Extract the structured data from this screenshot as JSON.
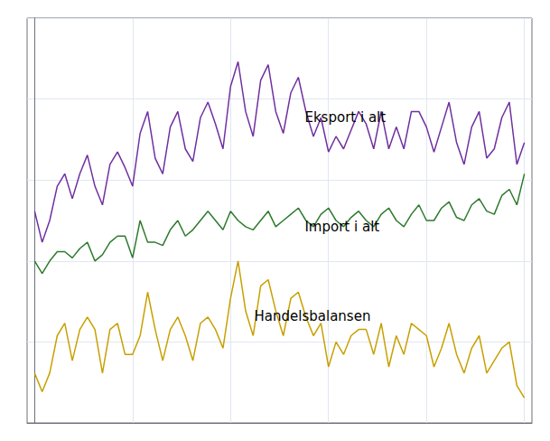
{
  "chart_data": {
    "type": "line",
    "x": [
      0,
      1,
      2,
      3,
      4,
      5,
      6,
      7,
      8,
      9,
      10,
      11,
      12,
      13,
      14,
      15,
      16,
      17,
      18,
      19,
      20,
      21,
      22,
      23,
      24,
      25,
      26,
      27,
      28,
      29,
      30,
      31,
      32,
      33,
      34,
      35,
      36,
      37,
      38,
      39,
      40,
      41,
      42,
      43,
      44,
      45,
      46,
      47,
      48,
      49,
      50,
      51,
      52,
      53,
      54,
      55,
      56,
      57,
      58,
      59,
      60,
      61,
      62,
      63,
      64,
      65
    ],
    "series": [
      {
        "color": "#7030a0",
        "values": [
          68,
          58,
          65,
          76,
          80,
          72,
          80,
          86,
          76,
          70,
          83,
          87,
          82,
          76,
          93,
          100,
          85,
          80,
          95,
          100,
          88,
          84,
          98,
          103,
          96,
          88,
          108,
          116,
          100,
          92,
          110,
          115,
          100,
          93,
          106,
          111,
          100,
          92,
          98,
          87,
          92,
          88,
          94,
          100,
          96,
          88,
          100,
          88,
          95,
          88,
          100,
          100,
          95,
          87,
          95,
          103,
          90,
          83,
          95,
          100,
          85,
          88,
          98,
          103,
          83,
          90
        ]
      },
      {
        "color": "#2e7a2e",
        "values": [
          52,
          48,
          52,
          55,
          55,
          53,
          56,
          58,
          52,
          54,
          58,
          60,
          60,
          53,
          65,
          58,
          58,
          57,
          62,
          65,
          60,
          62,
          65,
          68,
          65,
          62,
          68,
          65,
          63,
          62,
          65,
          68,
          63,
          65,
          67,
          69,
          65,
          63,
          67,
          69,
          65,
          63,
          66,
          68,
          65,
          63,
          67,
          69,
          65,
          63,
          67,
          70,
          65,
          65,
          69,
          71,
          66,
          65,
          70,
          72,
          68,
          67,
          73,
          75,
          70,
          80
        ]
      },
      {
        "color": "#c8a000",
        "values": [
          16,
          10,
          16,
          28,
          32,
          20,
          30,
          34,
          30,
          16,
          30,
          32,
          22,
          22,
          28,
          42,
          30,
          20,
          30,
          34,
          28,
          20,
          32,
          34,
          30,
          24,
          40,
          52,
          36,
          28,
          44,
          46,
          36,
          28,
          40,
          42,
          34,
          28,
          32,
          18,
          26,
          22,
          28,
          30,
          30,
          22,
          32,
          18,
          28,
          22,
          32,
          30,
          28,
          18,
          24,
          32,
          22,
          16,
          24,
          28,
          16,
          20,
          24,
          26,
          12,
          8
        ]
      }
    ],
    "annotations": [
      "Eksport i alt",
      "Import i alt",
      "Handelsbalansen"
    ],
    "xlim": [
      -1,
      66
    ],
    "xticks": [
      0,
      13,
      26,
      39,
      52,
      65
    ],
    "ylim": [
      0,
      130
    ],
    "yticks": [
      0,
      26,
      52,
      78,
      104,
      130
    ],
    "grid": true,
    "tick_labels": false
  }
}
